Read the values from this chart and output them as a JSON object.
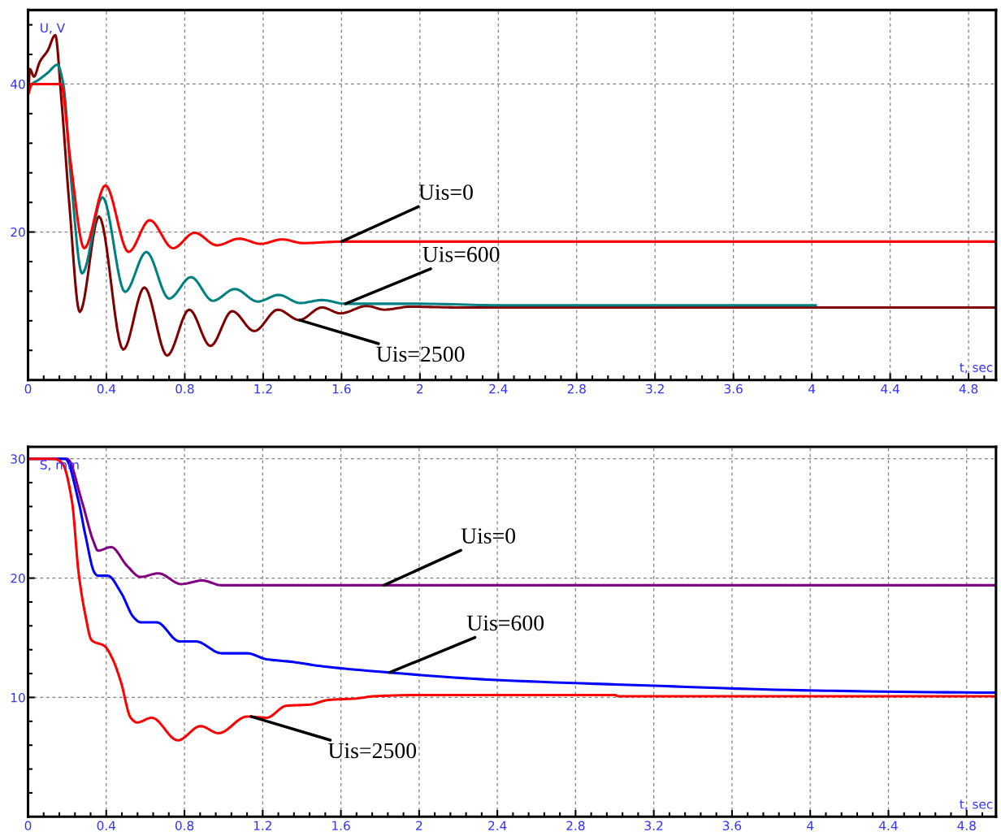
{
  "chart_data": [
    {
      "type": "line",
      "xlabel": "t, sec",
      "ylabel": "U, V",
      "xlim": [
        0,
        4.94
      ],
      "ylim": [
        0,
        50
      ],
      "xticks": [
        0,
        0.4,
        0.8,
        1.2,
        1.6,
        2,
        2.4,
        2.8,
        3.2,
        3.6,
        4,
        4.4,
        4.8,
        {
          "value": 0.08,
          "label": null
        },
        {
          "value": 0.16,
          "label": null
        },
        {
          "value": 0.24,
          "label": null
        },
        {
          "value": 0.32,
          "label": null
        },
        {
          "value": 0.48,
          "label": null
        },
        {
          "value": 0.56,
          "label": null
        },
        {
          "value": 0.64,
          "label": null
        },
        {
          "value": 0.72,
          "label": null
        },
        {
          "value": 0.88,
          "label": null
        },
        {
          "value": 0.96,
          "label": null
        },
        {
          "value": 1.04,
          "label": null
        },
        {
          "value": 1.12,
          "label": null
        },
        {
          "value": 1.28,
          "label": null
        },
        {
          "value": 1.36,
          "label": null
        },
        {
          "value": 1.44,
          "label": null
        },
        {
          "value": 1.52,
          "label": null
        },
        {
          "value": 1.68,
          "label": null
        },
        {
          "value": 1.76,
          "label": null
        },
        {
          "value": 1.84,
          "label": null
        },
        {
          "value": 1.92,
          "label": null
        },
        {
          "value": 2.08,
          "label": null
        },
        {
          "value": 2.16,
          "label": null
        },
        {
          "value": 2.24,
          "label": null
        },
        {
          "value": 2.32,
          "label": null
        },
        {
          "value": 2.48,
          "label": null
        },
        {
          "value": 2.56,
          "label": null
        },
        {
          "value": 2.64,
          "label": null
        },
        {
          "value": 2.72,
          "label": null
        },
        {
          "value": 2.88,
          "label": null
        },
        {
          "value": 2.96,
          "label": null
        },
        {
          "value": 3.04,
          "label": null
        },
        {
          "value": 3.12,
          "label": null
        },
        {
          "value": 3.28,
          "label": null
        },
        {
          "value": 3.36,
          "label": null
        },
        {
          "value": 3.44,
          "label": null
        },
        {
          "value": 3.52,
          "label": null
        },
        {
          "value": 3.68,
          "label": null
        },
        {
          "value": 3.76,
          "label": null
        },
        {
          "value": 3.84,
          "label": null
        },
        {
          "value": 3.92,
          "label": null
        },
        {
          "value": 4.08,
          "label": null
        },
        {
          "value": 4.16,
          "label": null
        },
        {
          "value": 4.24,
          "label": null
        },
        {
          "value": 4.32,
          "label": null
        },
        {
          "value": 4.48,
          "label": null
        },
        {
          "value": 4.56,
          "label": null
        },
        {
          "value": 4.64,
          "label": null
        },
        {
          "value": 4.72,
          "label": null
        },
        {
          "value": 4.88,
          "label": null
        }
      ],
      "yticks": [
        20,
        40,
        {
          "value": 4,
          "label": null
        },
        {
          "value": 8,
          "label": null
        },
        {
          "value": 12,
          "label": null
        },
        {
          "value": 16,
          "label": null
        },
        {
          "value": 24,
          "label": null
        },
        {
          "value": 28,
          "label": null
        },
        {
          "value": 32,
          "label": null
        },
        {
          "value": 36,
          "label": null
        },
        {
          "value": 44,
          "label": null
        },
        {
          "value": 48,
          "label": null
        }
      ],
      "grid": true,
      "line_style": "solid",
      "marker": "none",
      "series": [
        {
          "color": "#800000",
          "x": [
            0,
            0.01,
            0.03,
            0.06,
            0.1,
            0.139,
            0.17,
            0.21,
            0.264,
            0.362,
            0.486,
            0.594,
            0.71,
            0.823,
            0.931,
            1.042,
            1.155,
            1.275,
            1.384,
            1.5,
            1.595,
            1.728,
            1.82,
            1.95,
            2.2,
            4.94
          ],
          "values": [
            38.5,
            42,
            41,
            43,
            44.5,
            46.6,
            38,
            24,
            9.2,
            22.1,
            4.1,
            12.5,
            3.3,
            9.5,
            4.6,
            9.3,
            6.6,
            9.5,
            8.1,
            9.8,
            9,
            10,
            9.5,
            9.9,
            9.8,
            9.8
          ]
        },
        {
          "color": "#008080",
          "x": [
            0,
            0.02,
            0.05,
            0.1,
            0.15,
            0.18,
            0.22,
            0.276,
            0.38,
            0.495,
            0.604,
            0.72,
            0.832,
            0.943,
            1.056,
            1.172,
            1.28,
            1.388,
            1.5,
            1.62,
            2,
            2.4,
            4.02
          ],
          "values": [
            39,
            40,
            40.5,
            41.5,
            42.6,
            40,
            27,
            14.4,
            24.7,
            11.9,
            17.3,
            11,
            13.9,
            10.7,
            12.3,
            10.6,
            11.5,
            10.4,
            10.8,
            10.3,
            10.3,
            10.1,
            10.1
          ]
        },
        {
          "color": "#ff0000",
          "x": [
            0,
            0.02,
            0.1,
            0.168,
            0.217,
            0.287,
            0.395,
            0.513,
            0.621,
            0.74,
            0.85,
            0.964,
            1.077,
            1.188,
            1.296,
            1.404,
            1.6,
            4.94
          ],
          "values": [
            38.6,
            40,
            40,
            40,
            29.5,
            17.8,
            26.3,
            17.3,
            21.6,
            17.8,
            19.9,
            18.2,
            19.1,
            18.4,
            19,
            18.5,
            18.7,
            18.7
          ]
        }
      ],
      "annotations": [
        {
          "text": "Uis=0",
          "x": 1.6,
          "y": 18.7
        },
        {
          "text": "Uis=600",
          "x": 1.62,
          "y": 10.3
        },
        {
          "text": "Uis=2500",
          "x": 1.384,
          "y": 8.1
        }
      ]
    },
    {
      "type": "line",
      "xlabel": "t, sec",
      "ylabel": "S, mm",
      "xlim": [
        0,
        4.95
      ],
      "ylim": [
        0,
        31
      ],
      "xticks": [
        0,
        0.4,
        0.8,
        1.2,
        1.6,
        2,
        2.4,
        2.8,
        3.2,
        3.6,
        4,
        4.4,
        4.8,
        {
          "value": 0.08,
          "label": null
        },
        {
          "value": 0.16,
          "label": null
        },
        {
          "value": 0.24,
          "label": null
        },
        {
          "value": 0.32,
          "label": null
        },
        {
          "value": 0.48,
          "label": null
        },
        {
          "value": 0.56,
          "label": null
        },
        {
          "value": 0.64,
          "label": null
        },
        {
          "value": 0.72,
          "label": null
        },
        {
          "value": 0.88,
          "label": null
        },
        {
          "value": 0.96,
          "label": null
        },
        {
          "value": 1.04,
          "label": null
        },
        {
          "value": 1.12,
          "label": null
        },
        {
          "value": 1.28,
          "label": null
        },
        {
          "value": 1.36,
          "label": null
        },
        {
          "value": 1.44,
          "label": null
        },
        {
          "value": 1.52,
          "label": null
        },
        {
          "value": 1.68,
          "label": null
        },
        {
          "value": 1.76,
          "label": null
        },
        {
          "value": 1.84,
          "label": null
        },
        {
          "value": 1.92,
          "label": null
        },
        {
          "value": 2.08,
          "label": null
        },
        {
          "value": 2.16,
          "label": null
        },
        {
          "value": 2.24,
          "label": null
        },
        {
          "value": 2.32,
          "label": null
        },
        {
          "value": 2.48,
          "label": null
        },
        {
          "value": 2.56,
          "label": null
        },
        {
          "value": 2.64,
          "label": null
        },
        {
          "value": 2.72,
          "label": null
        },
        {
          "value": 2.88,
          "label": null
        },
        {
          "value": 2.96,
          "label": null
        },
        {
          "value": 3.04,
          "label": null
        },
        {
          "value": 3.12,
          "label": null
        },
        {
          "value": 3.28,
          "label": null
        },
        {
          "value": 3.36,
          "label": null
        },
        {
          "value": 3.44,
          "label": null
        },
        {
          "value": 3.52,
          "label": null
        },
        {
          "value": 3.68,
          "label": null
        },
        {
          "value": 3.76,
          "label": null
        },
        {
          "value": 3.84,
          "label": null
        },
        {
          "value": 3.92,
          "label": null
        },
        {
          "value": 4.08,
          "label": null
        },
        {
          "value": 4.16,
          "label": null
        },
        {
          "value": 4.24,
          "label": null
        },
        {
          "value": 4.32,
          "label": null
        },
        {
          "value": 4.48,
          "label": null
        },
        {
          "value": 4.56,
          "label": null
        },
        {
          "value": 4.64,
          "label": null
        },
        {
          "value": 4.72,
          "label": null
        },
        {
          "value": 4.88,
          "label": null
        }
      ],
      "yticks": [
        10,
        20,
        30,
        {
          "value": 2,
          "label": null
        },
        {
          "value": 4,
          "label": null
        },
        {
          "value": 6,
          "label": null
        },
        {
          "value": 8,
          "label": null
        },
        {
          "value": 12,
          "label": null
        },
        {
          "value": 14,
          "label": null
        },
        {
          "value": 16,
          "label": null
        },
        {
          "value": 18,
          "label": null
        },
        {
          "value": 22,
          "label": null
        },
        {
          "value": 24,
          "label": null
        },
        {
          "value": 26,
          "label": null
        },
        {
          "value": 28,
          "label": null
        }
      ],
      "grid": true,
      "line_style": "solid",
      "marker": "none",
      "series": [
        {
          "color": "#800080",
          "x": [
            0,
            0.2,
            0.276,
            0.334,
            0.358,
            0.425,
            0.508,
            0.575,
            0.667,
            0.783,
            0.891,
            0.99,
            4.95
          ],
          "values": [
            30,
            30,
            26.4,
            23.1,
            22.3,
            22.6,
            21,
            20.1,
            20.4,
            19.5,
            19.8,
            19.4,
            19.4
          ]
        },
        {
          "color": "#0000ff",
          "x": [
            0,
            0.19,
            0.259,
            0.292,
            0.342,
            0.358,
            0.408,
            0.475,
            0.541,
            0.575,
            0.658,
            0.774,
            0.857,
            0.99,
            1.12,
            1.22,
            1.34,
            1.51,
            1.84,
            2.35,
            3.17,
            3.95,
            4.95
          ],
          "values": [
            30,
            30,
            26.4,
            23.7,
            20.4,
            20.2,
            20.2,
            18.8,
            16.7,
            16.3,
            16.3,
            14.7,
            14.7,
            13.7,
            13.7,
            13.2,
            13,
            12.6,
            12.1,
            11.5,
            11,
            10.6,
            10.4
          ]
        },
        {
          "color": "#ff0000",
          "x": [
            0,
            0.134,
            0.176,
            0.225,
            0.259,
            0.292,
            0.325,
            0.392,
            0.433,
            0.475,
            0.525,
            0.558,
            0.633,
            0.766,
            0.882,
            0.974,
            1.12,
            1.22,
            1.32,
            1.44,
            1.54,
            1.67,
            1.77,
            2,
            3,
            3.02,
            4.95
          ],
          "values": [
            30,
            30,
            29.6,
            26.4,
            20.4,
            17,
            14.8,
            14.3,
            13.2,
            11.3,
            8.3,
            7.9,
            8.3,
            6.4,
            7.6,
            7,
            8.4,
            8.3,
            9.3,
            9.4,
            9.8,
            9.9,
            10.1,
            10.2,
            10.2,
            10.1,
            10.1
          ]
        }
      ],
      "annotations": [
        {
          "text": "Uis=0",
          "x": 1.82,
          "y": 19.4
        },
        {
          "text": "Uis=600",
          "x": 1.85,
          "y": 12.1
        },
        {
          "text": "Uis=2500",
          "x": 1.14,
          "y": 8.4
        }
      ]
    }
  ]
}
